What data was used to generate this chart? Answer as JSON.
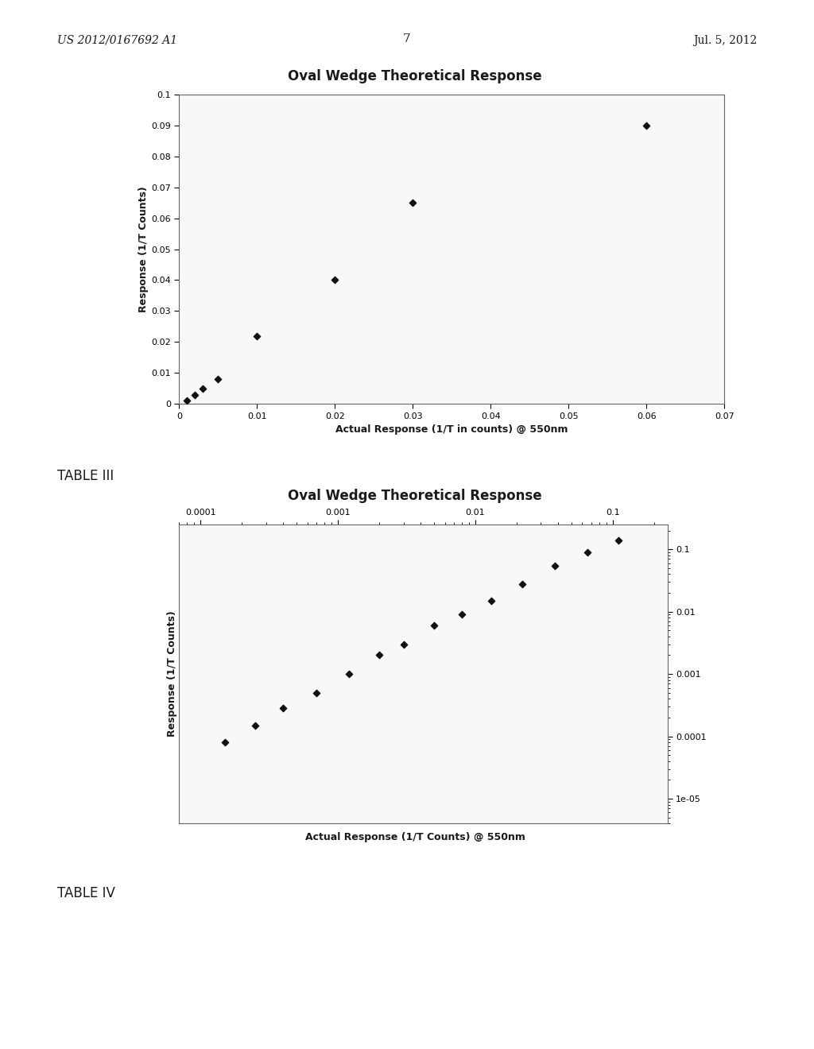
{
  "page_number": "7",
  "header_left": "US 2012/0167692 A1",
  "header_right": "Jul. 5, 2012",
  "table3_label": "TABLE III",
  "table4_label": "TABLE IV",
  "chart1": {
    "title": "Oval Wedge Theoretical Response",
    "xlabel": "Actual Response (1/T in counts) @ 550nm",
    "ylabel": "Response (1/T Counts)",
    "xlim": [
      0,
      0.07
    ],
    "ylim": [
      0,
      0.1
    ],
    "xticks": [
      0,
      0.01,
      0.02,
      0.03,
      0.04,
      0.05,
      0.06,
      0.07
    ],
    "yticks": [
      0,
      0.01,
      0.02,
      0.03,
      0.04,
      0.05,
      0.06,
      0.07,
      0.08,
      0.09,
      0.1
    ],
    "x_data": [
      0.001,
      0.002,
      0.003,
      0.005,
      0.01,
      0.02,
      0.03,
      0.06
    ],
    "y_data": [
      0.001,
      0.003,
      0.005,
      0.008,
      0.022,
      0.04,
      0.065,
      0.09
    ]
  },
  "chart2": {
    "title": "Oval Wedge Theoretical Response",
    "xlabel": "Actual Response (1/T Counts) @ 550nm",
    "ylabel": "Response (1/T Counts)",
    "xticks_log": [
      0.0001,
      0.001,
      0.01,
      0.1
    ],
    "yticks_right": [
      0.1,
      0.01,
      0.001,
      0.0001,
      1e-05
    ],
    "x_data": [
      0.00015,
      0.00025,
      0.0004,
      0.0007,
      0.0012,
      0.002,
      0.003,
      0.005,
      0.008,
      0.013,
      0.022,
      0.038,
      0.065,
      0.11
    ],
    "y_data": [
      8e-05,
      0.00015,
      0.00028,
      0.0005,
      0.001,
      0.002,
      0.003,
      0.006,
      0.009,
      0.015,
      0.028,
      0.055,
      0.09,
      0.14
    ]
  },
  "page_bg": "#e8e8e8",
  "chart_bg": "#f5f5f5",
  "text_color": "#1a1a1a",
  "marker_color": "#111111",
  "border_color": "#888888"
}
